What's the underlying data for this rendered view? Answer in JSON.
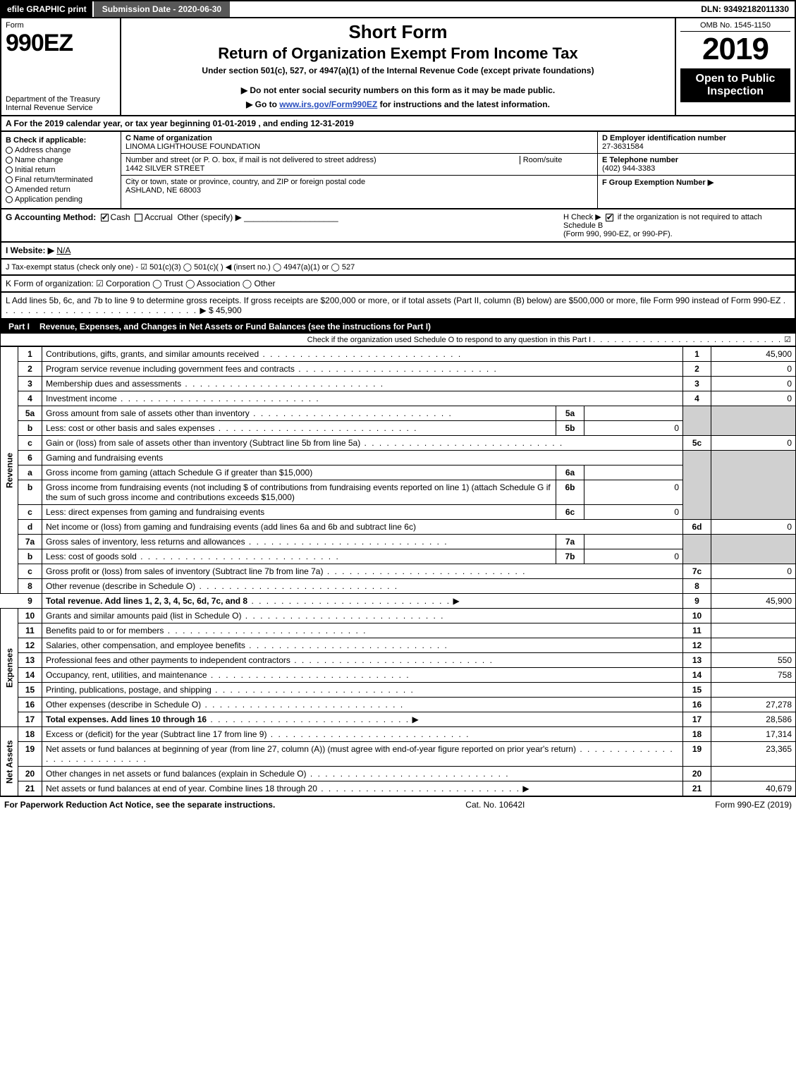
{
  "topbar": {
    "efile": "efile GRAPHIC print",
    "subdate_label": "Submission Date - 2020-06-30",
    "dln": "DLN: 93492182011330"
  },
  "header": {
    "form_word": "Form",
    "form_num": "990EZ",
    "dept1": "Department of the Treasury",
    "dept2": "Internal Revenue Service",
    "short": "Short Form",
    "return_title": "Return of Organization Exempt From Income Tax",
    "under": "Under section 501(c), 527, or 4947(a)(1) of the Internal Revenue Code (except private foundations)",
    "donot": "▶ Do not enter social security numbers on this form as it may be made public.",
    "go_pre": "▶ Go to ",
    "go_link": "www.irs.gov/Form990EZ",
    "go_post": " for instructions and the latest information.",
    "omb": "OMB No. 1545-1150",
    "year": "2019",
    "open": "Open to Public Inspection"
  },
  "rowA": "A  For the 2019 calendar year, or tax year beginning 01-01-2019 , and ending 12-31-2019",
  "secB": {
    "title": "B  Check if applicable:",
    "items": [
      "Address change",
      "Name change",
      "Initial return",
      "Final return/terminated",
      "Amended return",
      "Application pending"
    ]
  },
  "secC": {
    "org_label": "C Name of organization",
    "org_name": "LINOMA LIGHTHOUSE FOUNDATION",
    "street_label": "Number and street (or P. O. box, if mail is not delivered to street address)",
    "roomsuite": "Room/suite",
    "street": "1442 SILVER STREET",
    "city_label": "City or town, state or province, country, and ZIP or foreign postal code",
    "city": "ASHLAND, NE  68003"
  },
  "secD": {
    "ein_label": "D Employer identification number",
    "ein": "27-3631584",
    "tel_label": "E Telephone number",
    "tel": "(402) 944-3383",
    "grp_label": "F Group Exemption Number   ▶"
  },
  "rowG": {
    "acct": "G Accounting Method:",
    "cash": "Cash",
    "accrual": "Accrual",
    "other": "Other (specify) ▶",
    "h1": "H  Check ▶",
    "h2": " if the organization is not required to attach Schedule B",
    "h3": "(Form 990, 990-EZ, or 990-PF)."
  },
  "rowI": {
    "label": "I Website: ▶",
    "val": "N/A"
  },
  "rowJ": "J Tax-exempt status (check only one) -  ☑ 501(c)(3)  ◯ 501(c)(  ) ◀ (insert no.)  ◯ 4947(a)(1) or  ◯ 527",
  "rowK": "K Form of organization:   ☑ Corporation   ◯ Trust   ◯ Association   ◯ Other",
  "rowL": {
    "text": "L Add lines 5b, 6c, and 7b to line 9 to determine gross receipts. If gross receipts are $200,000 or more, or if total assets (Part II, column (B) below) are $500,000 or more, file Form 990 instead of Form 990-EZ",
    "amt": "▶ $ 45,900"
  },
  "part1": {
    "title": "Part I",
    "heading": "Revenue, Expenses, and Changes in Net Assets or Fund Balances (see the instructions for Part I)",
    "sub": "Check if the organization used Schedule O to respond to any question in this Part I",
    "sub_checked": "☑"
  },
  "sides": {
    "rev": "Revenue",
    "exp": "Expenses",
    "na": "Net Assets"
  },
  "lines": {
    "l1": {
      "n": "1",
      "d": "Contributions, gifts, grants, and similar amounts received",
      "box": "1",
      "amt": "45,900"
    },
    "l2": {
      "n": "2",
      "d": "Program service revenue including government fees and contracts",
      "box": "2",
      "amt": "0"
    },
    "l3": {
      "n": "3",
      "d": "Membership dues and assessments",
      "box": "3",
      "amt": "0"
    },
    "l4": {
      "n": "4",
      "d": "Investment income",
      "box": "4",
      "amt": "0"
    },
    "l5a": {
      "n": "5a",
      "d": "Gross amount from sale of assets other than inventory",
      "mini": "5a",
      "miniamt": ""
    },
    "l5b": {
      "n": "b",
      "d": "Less: cost or other basis and sales expenses",
      "mini": "5b",
      "miniamt": "0"
    },
    "l5c": {
      "n": "c",
      "d": "Gain or (loss) from sale of assets other than inventory (Subtract line 5b from line 5a)",
      "box": "5c",
      "amt": "0"
    },
    "l6": {
      "n": "6",
      "d": "Gaming and fundraising events"
    },
    "l6a": {
      "n": "a",
      "d": "Gross income from gaming (attach Schedule G if greater than $15,000)",
      "mini": "6a",
      "miniamt": ""
    },
    "l6b": {
      "n": "b",
      "d": "Gross income from fundraising events (not including $                     of contributions from fundraising events reported on line 1) (attach Schedule G if the sum of such gross income and contributions exceeds $15,000)",
      "mini": "6b",
      "miniamt": "0"
    },
    "l6c": {
      "n": "c",
      "d": "Less: direct expenses from gaming and fundraising events",
      "mini": "6c",
      "miniamt": "0"
    },
    "l6d": {
      "n": "d",
      "d": "Net income or (loss) from gaming and fundraising events (add lines 6a and 6b and subtract line 6c)",
      "box": "6d",
      "amt": "0"
    },
    "l7a": {
      "n": "7a",
      "d": "Gross sales of inventory, less returns and allowances",
      "mini": "7a",
      "miniamt": ""
    },
    "l7b": {
      "n": "b",
      "d": "Less: cost of goods sold",
      "mini": "7b",
      "miniamt": "0"
    },
    "l7c": {
      "n": "c",
      "d": "Gross profit or (loss) from sales of inventory (Subtract line 7b from line 7a)",
      "box": "7c",
      "amt": "0"
    },
    "l8": {
      "n": "8",
      "d": "Other revenue (describe in Schedule O)",
      "box": "8",
      "amt": ""
    },
    "l9": {
      "n": "9",
      "d": "Total revenue. Add lines 1, 2, 3, 4, 5c, 6d, 7c, and 8",
      "box": "9",
      "amt": "45,900",
      "arrow": "▶"
    },
    "l10": {
      "n": "10",
      "d": "Grants and similar amounts paid (list in Schedule O)",
      "box": "10",
      "amt": ""
    },
    "l11": {
      "n": "11",
      "d": "Benefits paid to or for members",
      "box": "11",
      "amt": ""
    },
    "l12": {
      "n": "12",
      "d": "Salaries, other compensation, and employee benefits",
      "box": "12",
      "amt": ""
    },
    "l13": {
      "n": "13",
      "d": "Professional fees and other payments to independent contractors",
      "box": "13",
      "amt": "550"
    },
    "l14": {
      "n": "14",
      "d": "Occupancy, rent, utilities, and maintenance",
      "box": "14",
      "amt": "758"
    },
    "l15": {
      "n": "15",
      "d": "Printing, publications, postage, and shipping",
      "box": "15",
      "amt": ""
    },
    "l16": {
      "n": "16",
      "d": "Other expenses (describe in Schedule O)",
      "box": "16",
      "amt": "27,278"
    },
    "l17": {
      "n": "17",
      "d": "Total expenses. Add lines 10 through 16",
      "box": "17",
      "amt": "28,586",
      "arrow": "▶"
    },
    "l18": {
      "n": "18",
      "d": "Excess or (deficit) for the year (Subtract line 17 from line 9)",
      "box": "18",
      "amt": "17,314"
    },
    "l19": {
      "n": "19",
      "d": "Net assets or fund balances at beginning of year (from line 27, column (A)) (must agree with end-of-year figure reported on prior year's return)",
      "box": "19",
      "amt": "23,365"
    },
    "l20": {
      "n": "20",
      "d": "Other changes in net assets or fund balances (explain in Schedule O)",
      "box": "20",
      "amt": ""
    },
    "l21": {
      "n": "21",
      "d": "Net assets or fund balances at end of year. Combine lines 18 through 20",
      "box": "21",
      "amt": "40,679",
      "arrow": "▶"
    }
  },
  "footer": {
    "left": "For Paperwork Reduction Act Notice, see the separate instructions.",
    "mid": "Cat. No. 10642I",
    "right": "Form 990-EZ (2019)"
  }
}
